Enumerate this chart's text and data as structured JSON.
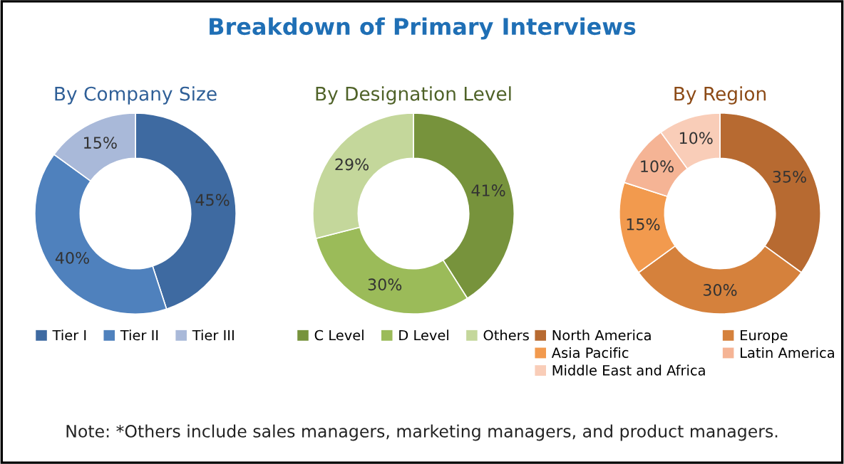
{
  "chart_data": [
    {
      "type": "donut",
      "title": "By Company Size",
      "categories": [
        "Tier I",
        "Tier II",
        "Tier III"
      ],
      "values": [
        45,
        40,
        15
      ],
      "value_labels": [
        "45%",
        "40%",
        "15%"
      ],
      "colors": [
        "#3e6aa1",
        "#4f81bd",
        "#a9b9d9"
      ],
      "legend": "bottom",
      "annotations": [
        "Breakdown of Primary Interviews",
        "Note: *Others include sales managers, marketing managers, and product managers."
      ]
    },
    {
      "type": "donut",
      "title": "By Designation Level",
      "categories": [
        "C Level",
        "D Level",
        "Others"
      ],
      "values": [
        41,
        30,
        29
      ],
      "value_labels": [
        "41%",
        "30%",
        "29%"
      ],
      "colors": [
        "#77933c",
        "#9bbb59",
        "#c4d79b"
      ],
      "legend": "bottom"
    },
    {
      "type": "donut",
      "title": "By Region",
      "categories": [
        "North America",
        "Europe",
        "Asia Pacific",
        "Latin America",
        "Middle East and Africa"
      ],
      "values": [
        35,
        30,
        15,
        10,
        10
      ],
      "value_labels": [
        "35%",
        "30%",
        "15%",
        "10%",
        "10%"
      ],
      "colors": [
        "#b76a31",
        "#d5813c",
        "#f29a4e",
        "#f5b495",
        "#f9cdb8"
      ],
      "legend": "bottom"
    }
  ]
}
